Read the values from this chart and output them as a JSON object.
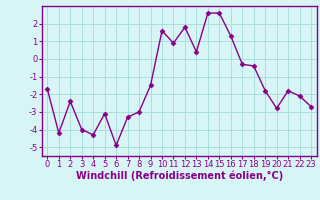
{
  "x": [
    0,
    1,
    2,
    3,
    4,
    5,
    6,
    7,
    8,
    9,
    10,
    11,
    12,
    13,
    14,
    15,
    16,
    17,
    18,
    19,
    20,
    21,
    22,
    23
  ],
  "y": [
    -1.7,
    -4.2,
    -2.4,
    -4.0,
    -4.3,
    -3.1,
    -4.9,
    -3.3,
    -3.0,
    -1.5,
    1.6,
    0.9,
    1.8,
    0.4,
    2.6,
    2.6,
    1.3,
    -0.3,
    -0.4,
    -1.8,
    -2.8,
    -1.8,
    -2.1,
    -2.7
  ],
  "line_color": "#880088",
  "marker": "D",
  "marker_size": 2.5,
  "bg_color": "#d8f5f5",
  "grid_color": "#aadddd",
  "xlabel": "Windchill (Refroidissement éolien,°C)",
  "xlabel_color": "#880088",
  "xlim": [
    -0.5,
    23.5
  ],
  "ylim": [
    -5.5,
    3.0
  ],
  "yticks": [
    -5,
    -4,
    -3,
    -2,
    -1,
    0,
    1,
    2
  ],
  "xticks": [
    0,
    1,
    2,
    3,
    4,
    5,
    6,
    7,
    8,
    9,
    10,
    11,
    12,
    13,
    14,
    15,
    16,
    17,
    18,
    19,
    20,
    21,
    22,
    23
  ],
  "tick_color": "#880088",
  "tick_labelsize": 6,
  "xlabel_fontsize": 7,
  "spine_color": "#880088",
  "linewidth": 1.0
}
